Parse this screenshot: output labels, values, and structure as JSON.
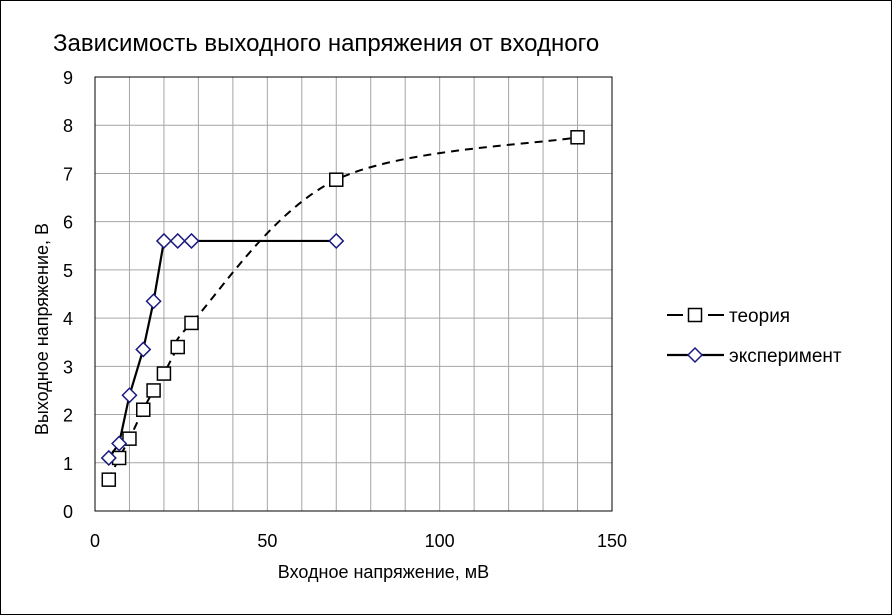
{
  "chart_data": {
    "type": "scatter",
    "title": "Зависимость выходного  напряжения от входного",
    "xlabel": "Входное  напряжение, мВ",
    "ylabel": "Выходное  напряжение, В",
    "xlim": [
      0,
      150
    ],
    "ylim": [
      0,
      9
    ],
    "xticks": [
      0,
      50,
      100,
      150
    ],
    "yticks": [
      0,
      1,
      2,
      3,
      4,
      5,
      6,
      7,
      8,
      9
    ],
    "x_minor_step": 10,
    "grid": true,
    "legend_position": "right",
    "series": [
      {
        "name": "теория",
        "line": "dashed-smooth",
        "marker": "square",
        "color": "#000000",
        "marker_fill": "#ffffff",
        "x": [
          4,
          7,
          10,
          14,
          17,
          20,
          24,
          28,
          70,
          140
        ],
        "y": [
          0.65,
          1.1,
          1.5,
          2.1,
          2.5,
          2.85,
          3.4,
          3.9,
          6.87,
          7.75
        ]
      },
      {
        "name": "эксперимент",
        "line": "solid",
        "marker": "diamond",
        "color": "#000000",
        "marker_color": "#1a1a80",
        "marker_fill": "#ffffff",
        "x": [
          4,
          7,
          10,
          14,
          17,
          20,
          24,
          28,
          70
        ],
        "y": [
          1.1,
          1.4,
          2.4,
          3.35,
          4.35,
          5.6,
          5.6,
          5.6,
          5.6
        ]
      }
    ]
  }
}
